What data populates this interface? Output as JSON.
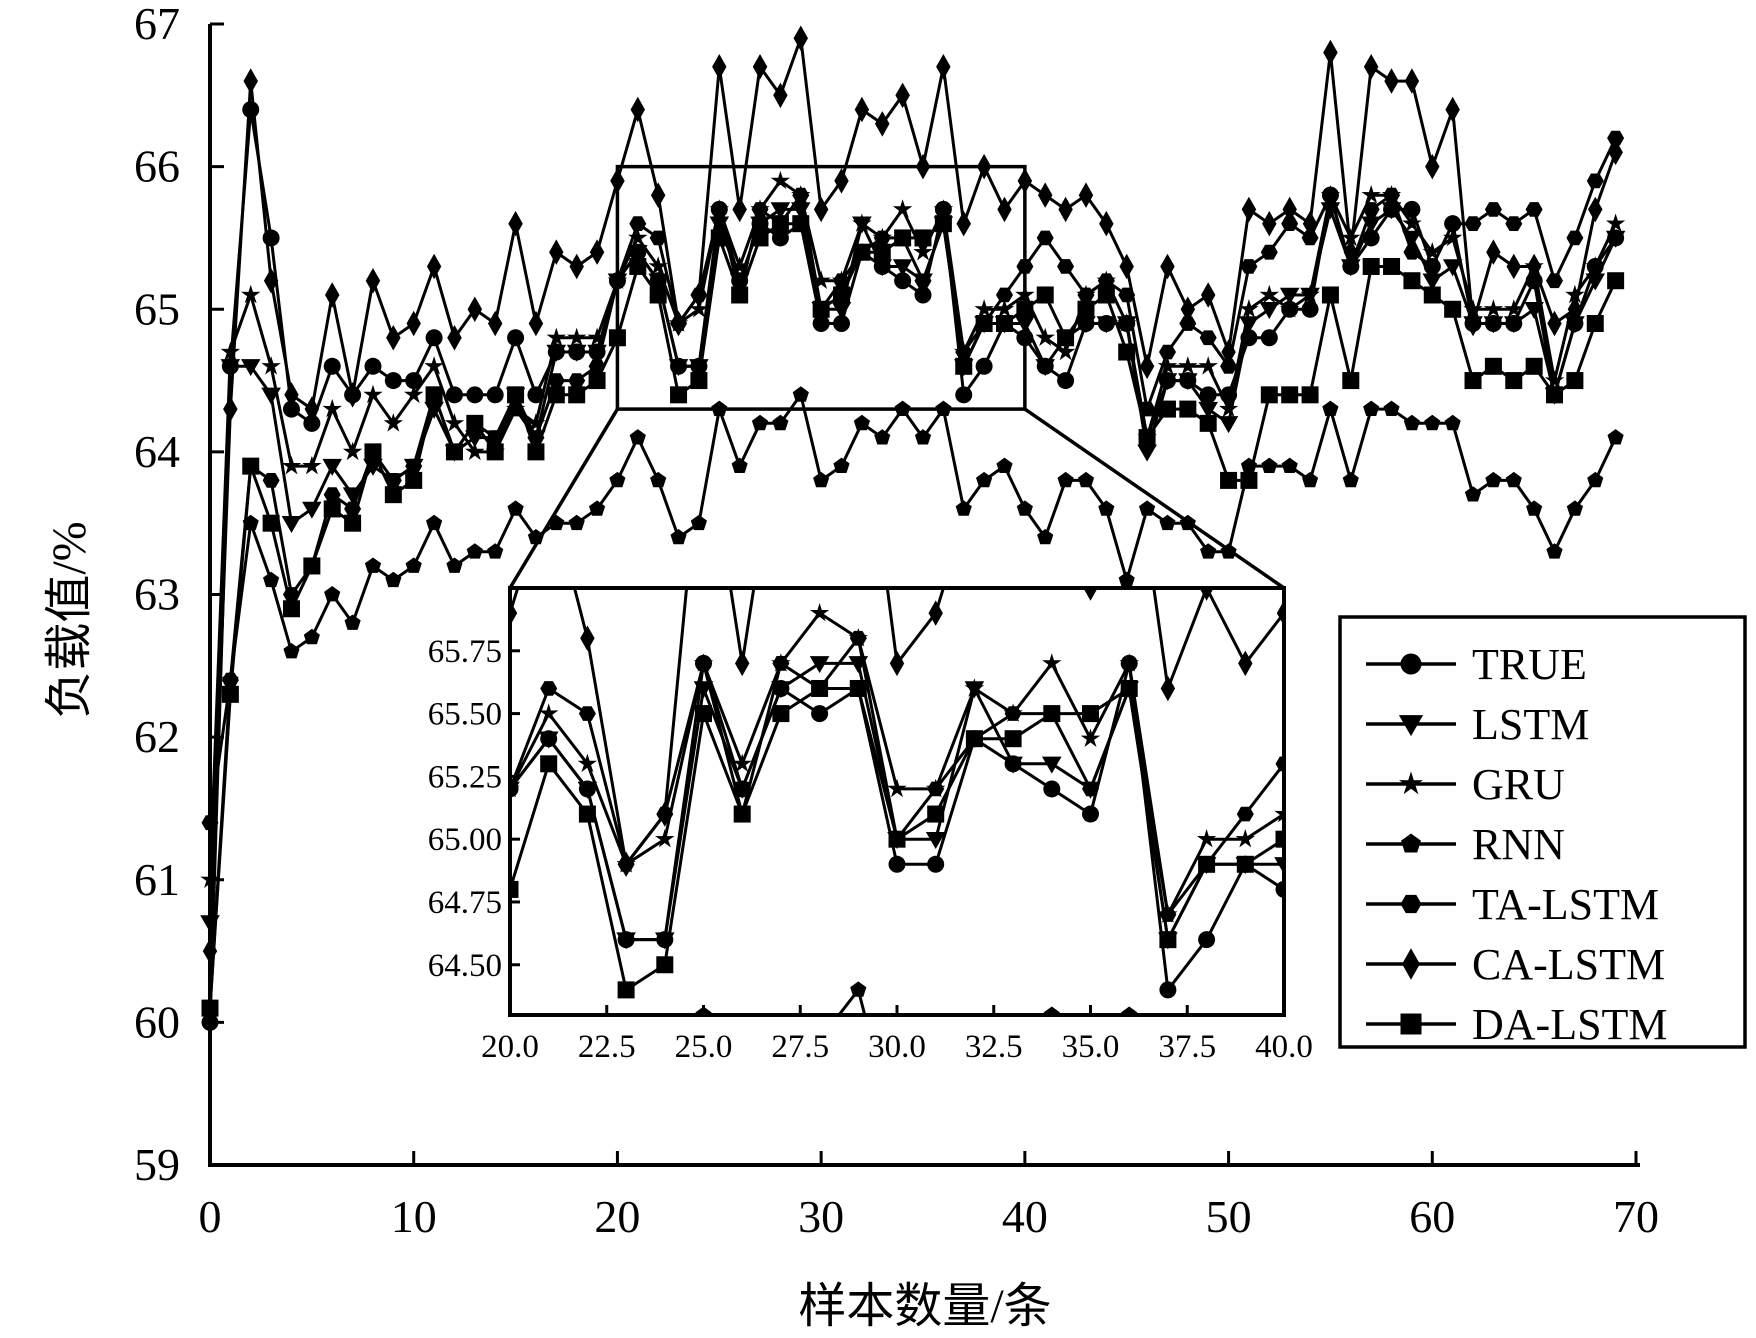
{
  "chart_data": {
    "type": "line",
    "title": "",
    "xlabel": "样本数量/条",
    "ylabel": "负载值/%",
    "xlim": [
      0,
      70
    ],
    "ylim": [
      59,
      67
    ],
    "xticks": [
      "0",
      "10",
      "20",
      "30",
      "40",
      "50",
      "60",
      "70"
    ],
    "yticks": [
      "59",
      "60",
      "61",
      "62",
      "63",
      "64",
      "65",
      "66",
      "67"
    ],
    "grid": false,
    "legend_position": "right",
    "color": "#000000",
    "x": [
      0,
      1,
      2,
      3,
      4,
      5,
      6,
      7,
      8,
      9,
      10,
      11,
      12,
      13,
      14,
      15,
      16,
      17,
      18,
      19,
      20,
      21,
      22,
      23,
      24,
      25,
      26,
      27,
      28,
      29,
      30,
      31,
      32,
      33,
      34,
      35,
      36,
      37,
      38,
      39,
      40,
      41,
      42,
      43,
      44,
      45,
      46,
      47,
      48,
      49,
      50,
      51,
      52,
      53,
      54,
      55,
      56,
      57,
      58,
      59,
      60,
      61,
      62,
      63,
      64,
      65,
      66,
      67,
      68,
      69
    ],
    "series": [
      {
        "name": "TRUE",
        "marker": "circle",
        "values": [
          60.0,
          64.6,
          66.4,
          65.5,
          64.3,
          64.2,
          64.6,
          64.4,
          64.6,
          64.5,
          64.5,
          64.8,
          64.4,
          64.4,
          64.4,
          64.8,
          64.4,
          64.7,
          64.7,
          64.7,
          65.2,
          65.4,
          65.2,
          64.6,
          64.6,
          65.7,
          65.2,
          65.6,
          65.5,
          65.6,
          64.9,
          64.9,
          65.4,
          65.3,
          65.2,
          65.1,
          65.7,
          64.4,
          64.6,
          64.9,
          64.8,
          64.6,
          64.5,
          64.9,
          64.9,
          64.9,
          64.1,
          64.5,
          64.5,
          64.4,
          64.4,
          64.8,
          64.8,
          65.0,
          65.0,
          65.8,
          65.3,
          65.5,
          65.7,
          65.7,
          65.3,
          65.6,
          64.9,
          64.9,
          64.9,
          65.2,
          64.4,
          64.9,
          65.3,
          65.5
        ]
      },
      {
        "name": "LSTM",
        "marker": "triangle-down",
        "values": [
          60.7,
          64.6,
          64.6,
          64.4,
          63.5,
          63.6,
          63.9,
          63.7,
          63.9,
          63.8,
          63.9,
          64.3,
          64.0,
          64.1,
          64.1,
          64.4,
          64.1,
          64.7,
          64.7,
          64.7,
          65.2,
          65.4,
          65.2,
          64.6,
          64.6,
          65.6,
          65.2,
          65.6,
          65.7,
          65.7,
          65.0,
          65.0,
          65.6,
          65.3,
          65.3,
          65.2,
          65.6,
          64.6,
          64.9,
          64.9,
          64.9,
          64.6,
          64.8,
          64.9,
          64.9,
          64.9,
          64.0,
          64.5,
          64.5,
          64.3,
          64.2,
          64.9,
          65.0,
          65.1,
          65.1,
          65.7,
          65.3,
          65.6,
          65.7,
          65.5,
          65.2,
          65.3,
          64.9,
          64.9,
          64.9,
          65.0,
          64.4,
          64.9,
          65.2,
          65.5
        ]
      },
      {
        "name": "GRU",
        "marker": "star",
        "values": [
          61.0,
          64.7,
          65.1,
          64.6,
          63.9,
          63.9,
          64.3,
          64.0,
          64.4,
          64.2,
          64.4,
          64.6,
          64.2,
          64.0,
          64.0,
          64.3,
          64.2,
          64.8,
          64.8,
          64.8,
          65.2,
          65.5,
          65.3,
          64.9,
          65.0,
          65.7,
          65.3,
          65.7,
          65.9,
          65.8,
          65.2,
          65.2,
          65.6,
          65.5,
          65.7,
          65.4,
          65.7,
          64.7,
          65.0,
          65.0,
          65.1,
          64.8,
          64.7,
          65.1,
          65.2,
          64.9,
          64.1,
          64.6,
          64.6,
          64.6,
          64.3,
          65.0,
          65.1,
          65.0,
          65.1,
          65.8,
          65.5,
          65.8,
          65.8,
          65.6,
          65.4,
          65.5,
          65.0,
          65.0,
          65.0,
          65.3,
          64.5,
          65.1,
          65.3,
          65.6
        ]
      },
      {
        "name": "RNN",
        "marker": "pentagon",
        "values": [
          60.1,
          62.4,
          63.5,
          63.1,
          62.6,
          62.7,
          63.0,
          62.8,
          63.2,
          63.1,
          63.2,
          63.5,
          63.2,
          63.3,
          63.3,
          63.6,
          63.4,
          63.5,
          63.5,
          63.6,
          63.8,
          64.1,
          63.8,
          63.4,
          63.5,
          64.3,
          63.9,
          64.2,
          64.2,
          64.4,
          63.8,
          63.9,
          64.2,
          64.1,
          64.3,
          64.1,
          64.3,
          63.6,
          63.8,
          63.9,
          63.6,
          63.4,
          63.8,
          63.8,
          63.6,
          63.1,
          63.6,
          63.5,
          63.5,
          63.3,
          63.3,
          63.9,
          63.9,
          63.9,
          63.8,
          64.3,
          63.8,
          64.3,
          64.3,
          64.2,
          64.2,
          64.2,
          63.7,
          63.8,
          63.8,
          63.6,
          63.3,
          63.6,
          63.8,
          64.1
        ]
      },
      {
        "name": "TA-LSTM",
        "marker": "hexagon",
        "values": [
          61.4,
          62.4,
          63.9,
          63.8,
          63.0,
          63.2,
          63.7,
          63.6,
          64.0,
          63.8,
          63.9,
          64.4,
          64.0,
          64.2,
          64.1,
          64.3,
          64.1,
          64.5,
          64.5,
          64.6,
          65.2,
          65.6,
          65.5,
          64.9,
          65.1,
          65.7,
          65.1,
          65.7,
          65.6,
          65.8,
          65.0,
          65.2,
          65.4,
          65.5,
          65.5,
          65.2,
          65.6,
          64.7,
          64.9,
          65.1,
          65.3,
          65.5,
          65.3,
          65.1,
          65.2,
          65.1,
          64.3,
          64.7,
          64.9,
          64.8,
          64.6,
          65.3,
          65.4,
          65.6,
          65.5,
          65.8,
          65.3,
          65.7,
          65.8,
          65.4,
          65.3,
          65.6,
          65.6,
          65.7,
          65.6,
          65.7,
          65.2,
          65.5,
          65.9,
          66.2
        ]
      },
      {
        "name": "CA-LSTM",
        "marker": "diamond",
        "values": [
          60.5,
          64.3,
          66.6,
          65.2,
          64.4,
          64.3,
          65.1,
          64.4,
          65.2,
          64.8,
          64.9,
          65.3,
          64.8,
          65.0,
          64.9,
          65.6,
          64.9,
          65.4,
          65.3,
          65.4,
          65.9,
          66.4,
          65.8,
          64.9,
          65.1,
          66.7,
          65.7,
          66.7,
          66.5,
          66.9,
          65.7,
          65.9,
          66.4,
          66.3,
          66.5,
          66.0,
          66.7,
          65.6,
          66.0,
          65.7,
          65.9,
          65.8,
          65.7,
          65.8,
          65.6,
          65.3,
          64.6,
          65.3,
          65.0,
          65.1,
          64.7,
          65.7,
          65.6,
          65.7,
          65.6,
          66.8,
          65.4,
          66.7,
          66.6,
          66.6,
          66.0,
          66.4,
          64.9,
          65.4,
          65.3,
          65.3,
          64.9,
          65.0,
          65.7,
          66.1
        ]
      },
      {
        "name": "DA-LSTM",
        "marker": "square",
        "values": [
          60.1,
          62.3,
          63.9,
          63.5,
          62.9,
          63.2,
          63.6,
          63.5,
          64.0,
          63.7,
          63.8,
          64.4,
          64.0,
          64.2,
          64.0,
          64.4,
          64.0,
          64.4,
          64.4,
          64.5,
          64.8,
          65.3,
          65.1,
          64.4,
          64.5,
          65.5,
          65.1,
          65.5,
          65.6,
          65.6,
          65.0,
          65.1,
          65.4,
          65.4,
          65.5,
          65.5,
          65.6,
          64.6,
          64.9,
          64.9,
          65.0,
          65.1,
          64.8,
          65.0,
          65.1,
          64.7,
          64.1,
          64.3,
          64.3,
          64.2,
          63.8,
          63.8,
          64.4,
          64.4,
          64.4,
          65.1,
          64.5,
          65.3,
          65.3,
          65.2,
          65.1,
          65.0,
          64.5,
          64.6,
          64.5,
          64.6,
          64.4,
          64.5,
          64.9,
          65.2
        ]
      }
    ],
    "highlight_box": {
      "x": [
        20,
        40
      ],
      "y": [
        64.3,
        66.0
      ]
    },
    "inset": {
      "xlim": [
        20,
        40
      ],
      "ylim": [
        64.3,
        66.0
      ],
      "xticks": [
        "20.0",
        "22.5",
        "25.0",
        "27.5",
        "30.0",
        "32.5",
        "35.0",
        "37.5",
        "40.0"
      ],
      "yticks": [
        "64.50",
        "64.75",
        "65.00",
        "65.25",
        "65.50",
        "65.75"
      ]
    }
  }
}
